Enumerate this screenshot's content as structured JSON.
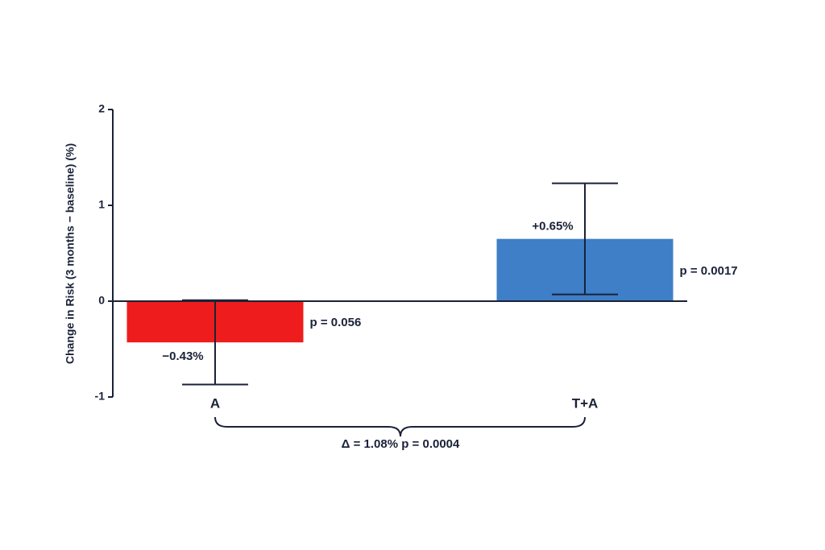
{
  "chart_data": {
    "type": "bar",
    "y_label": "Change in Risk (3 months − baseline) (%)",
    "categories": [
      "A",
      "T+A"
    ],
    "values": [
      -0.43,
      0.65
    ],
    "value_labels": [
      "−0.43%",
      "+0.65%"
    ],
    "errors": [
      0.44,
      0.58
    ],
    "colors": [
      "#ee1c1c",
      "#3f7fc8"
    ],
    "p_labels": [
      "p = 0.056",
      "p = 0.0017"
    ],
    "comparison_label": "Δ = 1.08% p = 0.0004",
    "ylim": [
      -1,
      2
    ],
    "yticks": [
      -1,
      0,
      1,
      2
    ]
  }
}
